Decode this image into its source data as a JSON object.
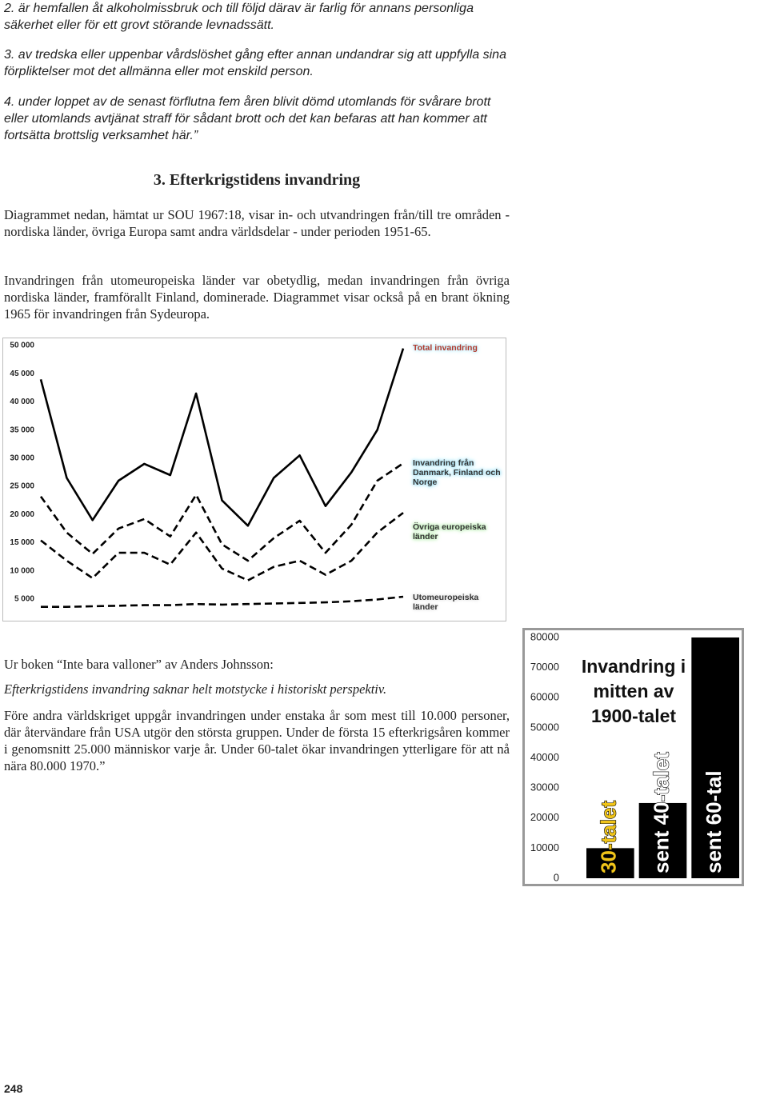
{
  "text": {
    "items": [
      "2. är hemfallen åt alkoholmissbruk och till följd därav är farlig för annans personliga säkerhet eller för ett grovt störande levnadssätt.",
      "3. av tredska eller uppenbar vårdslöshet gång efter annan undandrar sig att uppfylla sina förpliktelser mot det allmänna eller mot enskild person.",
      "4. under loppet av de senast förflutna fem åren blivit dömd utomlands för svårare brott eller utomlands avtjänat straff för sådant brott och det kan befaras att han kommer att fortsätta brottslig verksamhet här.”"
    ],
    "heading": "3. Efterkrigstidens invandring",
    "intro": [
      "Diagrammet nedan, hämtat ur SOU 1967:18, visar in- och utvandringen från/till tre områden - nordiska länder, övriga Europa samt andra världsdelar - under perioden 1951-65.",
      "Invandringen från utomeuropeiska länder var obetydlig, medan invandringen från övriga nordiska länder, framförallt Finland, dominerade. Diagrammet visar också på en brant ökning 1965 för invandringen från Sydeuropa."
    ],
    "quote_source": "Ur boken “Inte bara valloner” av Anders Johnsson:",
    "quote_lead": "Efterkrigstidens invandring saknar helt motstycke i historiskt perspektiv.",
    "quote_body": "Före andra världskriget uppgår invandringen under enstaka år som mest till 10.000 personer, där återvändare från USA utgör den största gruppen. Under de första 15 efterkrigsåren kommer i genomsnitt 25.000 människor varje år. Under 60-talet ökar invandringen ytterligare för att nå nära 80.000 1970.”",
    "page_number": "248"
  },
  "chart_data": [
    {
      "type": "line",
      "categories": [
        null,
        null,
        null,
        null,
        null,
        null,
        null,
        null,
        null,
        null,
        null,
        null,
        null,
        null,
        null
      ],
      "series": [
        {
          "name": "Total invandring",
          "color": "#000000",
          "dashed": false,
          "label_color": "#b03a2e",
          "glow": "#bfe9f5",
          "values": [
            44000,
            26500,
            19000,
            26000,
            29000,
            27000,
            41500,
            22500,
            18000,
            26500,
            30500,
            21500,
            27500,
            35000,
            49500
          ]
        },
        {
          "name": "Invandring från Danmark, Finland och Norge",
          "color": "#000000",
          "dashed": true,
          "label_color": "#333333",
          "glow": "#9fdff2",
          "values": [
            23200,
            16800,
            13000,
            17500,
            19200,
            16100,
            23500,
            14700,
            11800,
            15800,
            18900,
            13200,
            18200,
            26000,
            29100
          ]
        },
        {
          "name": "Övriga europeiska länder",
          "color": "#000000",
          "dashed": true,
          "label_color": "#333333",
          "glow": "#b7eab0",
          "values": [
            15400,
            11800,
            8700,
            13200,
            13200,
            11100,
            16800,
            10400,
            8300,
            10700,
            11800,
            9300,
            11800,
            16800,
            20300
          ]
        },
        {
          "name": "Utomeuropeiska länder",
          "color": "#000000",
          "dashed": true,
          "label_color": "#333333",
          "glow": "#e6e6e6",
          "values": [
            3600,
            3600,
            3700,
            3800,
            3900,
            3900,
            4100,
            4000,
            4100,
            4200,
            4300,
            4400,
            4600,
            4900,
            5400
          ]
        }
      ],
      "ylim": [
        1000,
        51000
      ],
      "yticks": [
        {
          "value": 5000,
          "label": "5 000"
        },
        {
          "value": 10000,
          "label": "10 000"
        },
        {
          "value": 15000,
          "label": "15 000"
        },
        {
          "value": 20000,
          "label": "20 000"
        },
        {
          "value": 25000,
          "label": "25 000"
        },
        {
          "value": 30000,
          "label": "30 000"
        },
        {
          "value": 35000,
          "label": "35 000"
        },
        {
          "value": 40000,
          "label": "40 000"
        },
        {
          "value": 45000,
          "label": "45 000"
        },
        {
          "value": 50000,
          "label": "50 000"
        }
      ],
      "grid": false,
      "legend": "right"
    },
    {
      "type": "bar",
      "title": "Invandring i mitten av 1900-talet",
      "categories": [
        "30-talet",
        "sent 40-talet",
        "sent 60-tal"
      ],
      "values": [
        10000,
        25000,
        80000
      ],
      "color": "#000000",
      "label_colors": [
        "#f0c419",
        "#ffffff",
        "#ffffff"
      ],
      "ylim": [
        0,
        80000
      ],
      "yticks": [
        0,
        10000,
        20000,
        30000,
        40000,
        50000,
        60000,
        70000,
        80000
      ],
      "grid": false
    }
  ]
}
